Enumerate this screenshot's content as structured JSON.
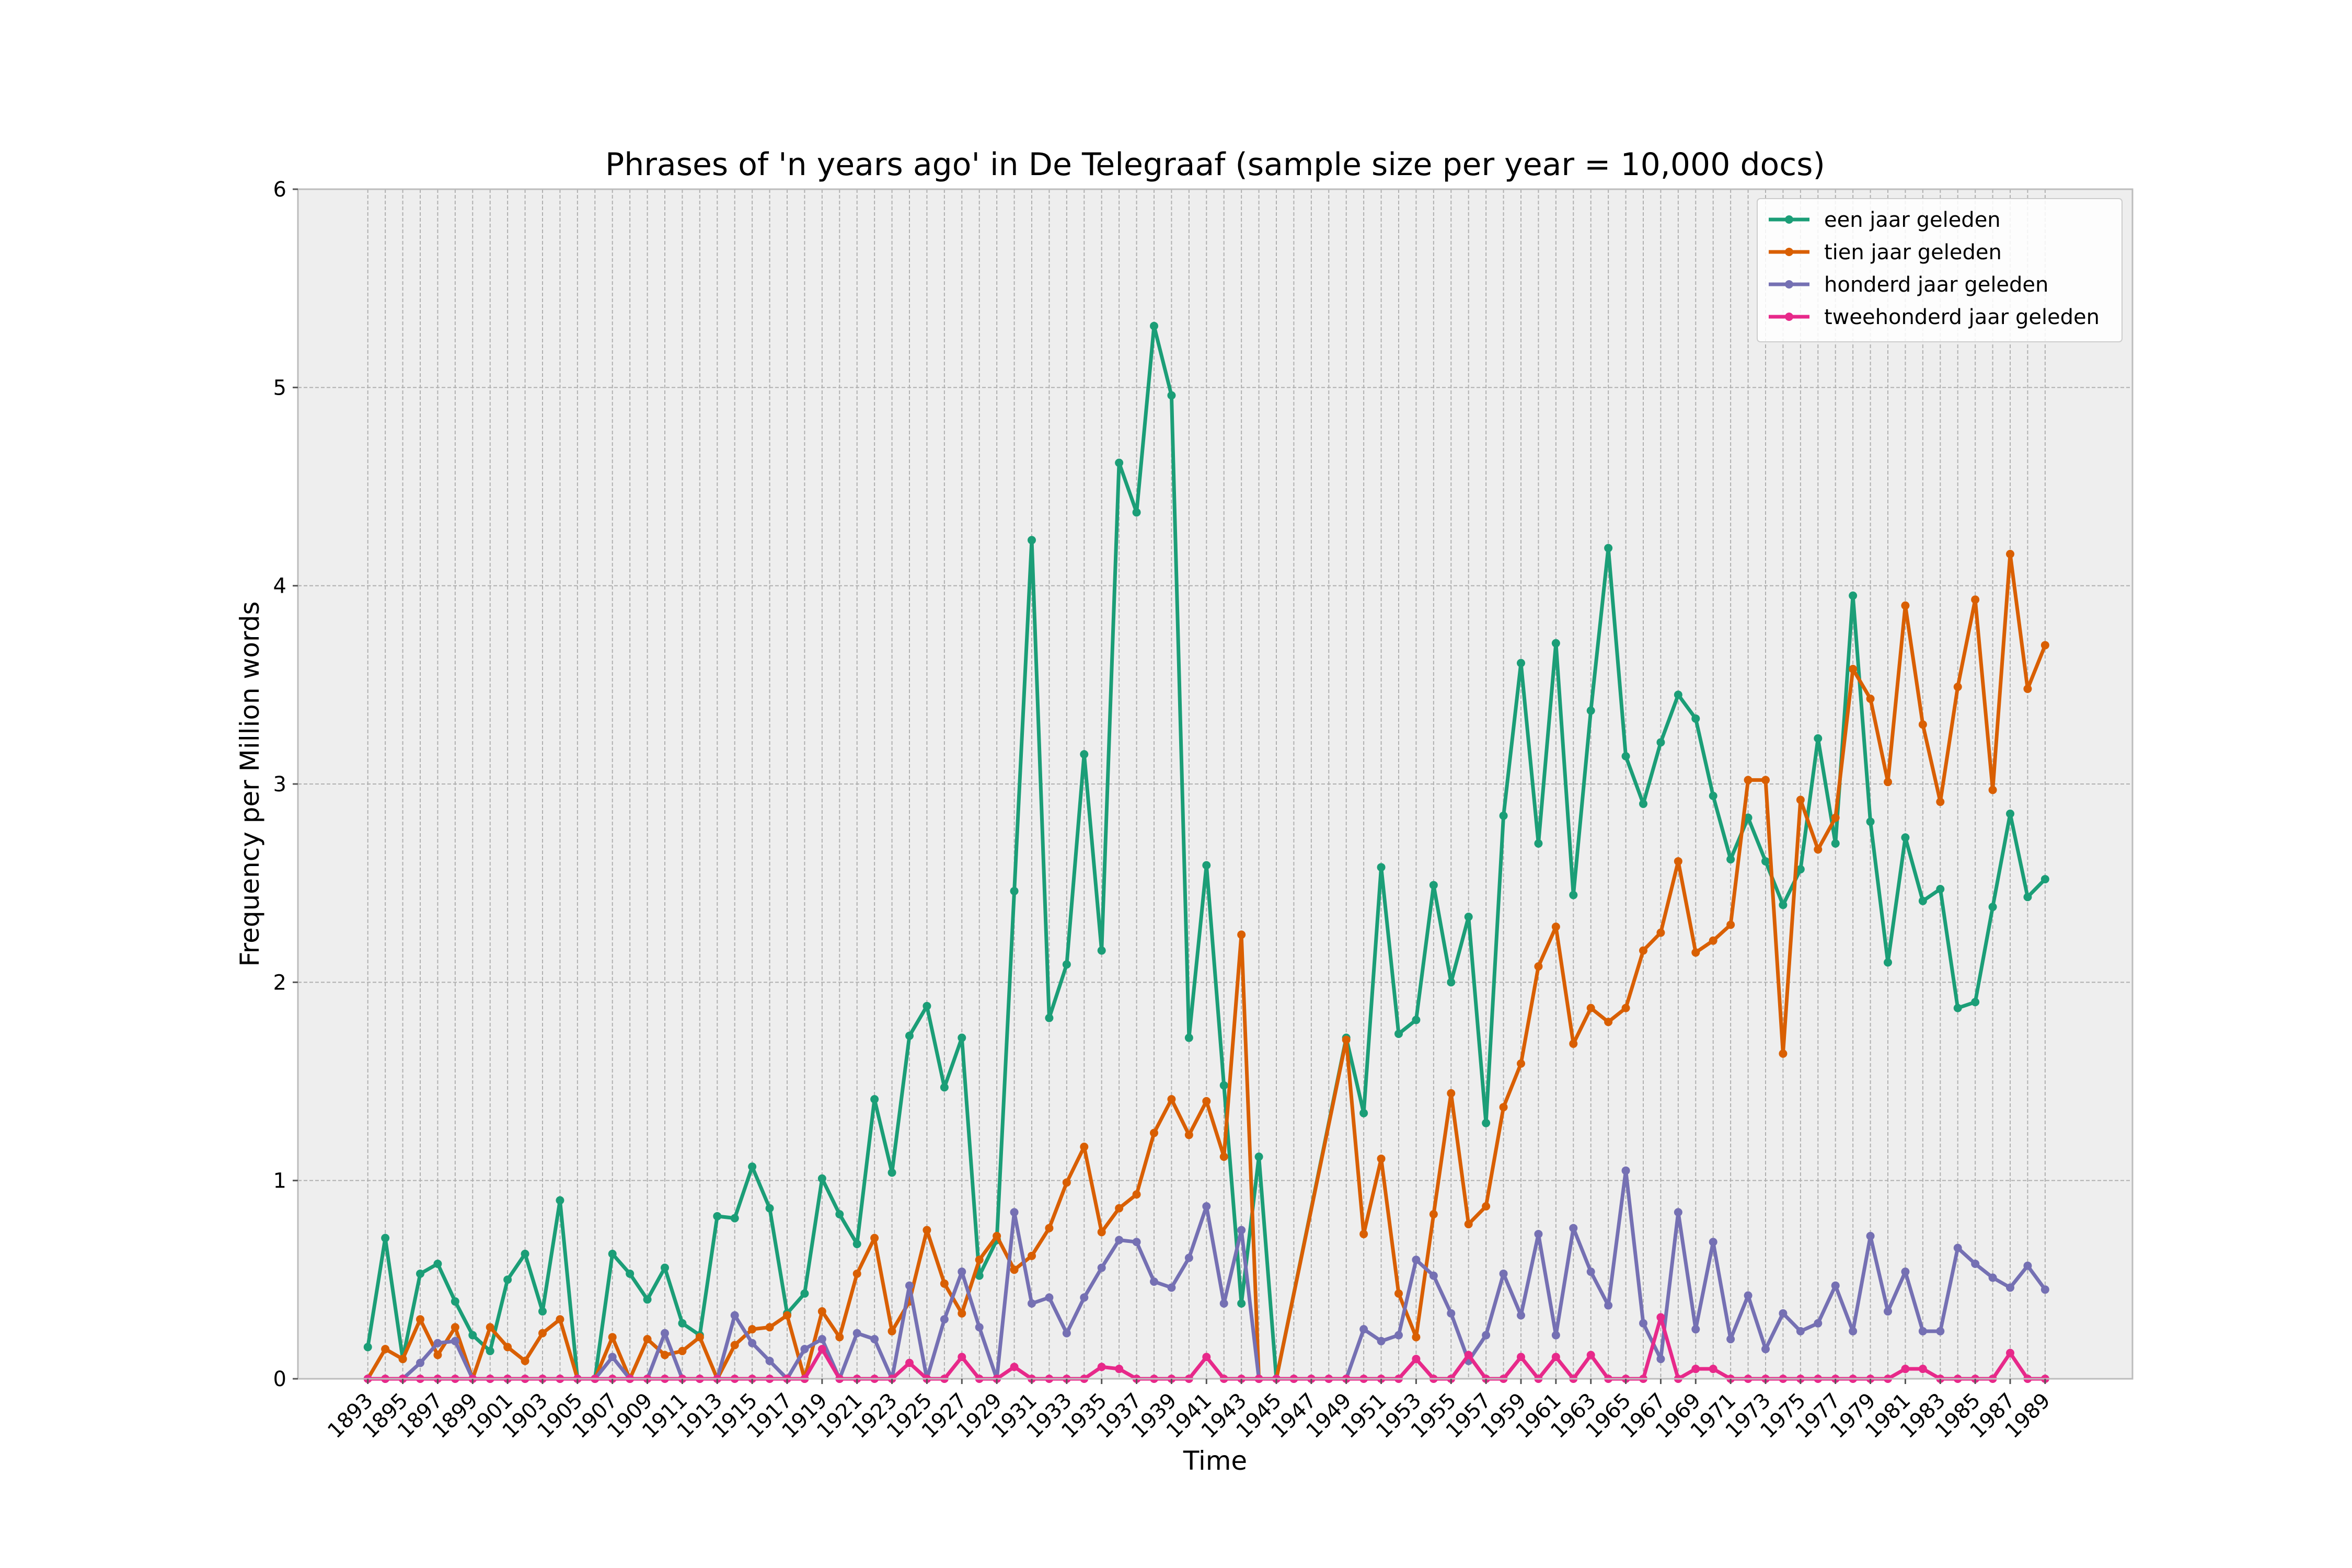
{
  "chart_data": {
    "type": "line",
    "title": "Phrases of 'n years ago' in De Telegraaf (sample size per year = 10,000 docs)",
    "xlabel": "Time",
    "ylabel": "Frequency per Million words",
    "ylim": [
      0,
      6
    ],
    "yticks": [
      "0",
      "1",
      "2",
      "3",
      "4",
      "5",
      "6"
    ],
    "xlim": [
      1893,
      1989
    ],
    "xticks": [
      "1893",
      "1895",
      "1897",
      "1899",
      "1901",
      "1903",
      "1905",
      "1907",
      "1909",
      "1911",
      "1913",
      "1915",
      "1917",
      "1919",
      "1921",
      "1923",
      "1925",
      "1927",
      "1929",
      "1931",
      "1933",
      "1935",
      "1937",
      "1939",
      "1941",
      "1943",
      "1945",
      "1947",
      "1949",
      "1951",
      "1953",
      "1955",
      "1957",
      "1959",
      "1961",
      "1963",
      "1965",
      "1967",
      "1969",
      "1971",
      "1973",
      "1975",
      "1977",
      "1979",
      "1981",
      "1983",
      "1985",
      "1987",
      "1989"
    ],
    "grid": true,
    "legend_position": "top-right",
    "series": [
      {
        "name": "een jaar geleden",
        "color": "#1b9e77",
        "x": [
          1893,
          1894,
          1895,
          1896,
          1897,
          1898,
          1899,
          1900,
          1901,
          1902,
          1903,
          1904,
          1905,
          1906,
          1907,
          1908,
          1909,
          1910,
          1911,
          1912,
          1913,
          1914,
          1915,
          1916,
          1917,
          1918,
          1919,
          1920,
          1921,
          1922,
          1923,
          1924,
          1925,
          1926,
          1927,
          1928,
          1929,
          1930,
          1931,
          1932,
          1933,
          1934,
          1935,
          1936,
          1937,
          1938,
          1939,
          1940,
          1941,
          1942,
          1943,
          1944,
          1945,
          1949,
          1950,
          1951,
          1952,
          1953,
          1954,
          1955,
          1956,
          1957,
          1958,
          1959,
          1960,
          1961,
          1962,
          1963,
          1964,
          1965,
          1966,
          1967,
          1968,
          1969,
          1970,
          1971,
          1972,
          1973,
          1974,
          1975,
          1976,
          1977,
          1978,
          1979,
          1980,
          1981,
          1982,
          1983,
          1984,
          1985,
          1986,
          1987,
          1988,
          1989
        ],
        "y": [
          0.16,
          0.71,
          0.1,
          0.53,
          0.58,
          0.39,
          0.22,
          0.14,
          0.5,
          0.63,
          0.34,
          0.9,
          0.0,
          0.0,
          0.63,
          0.53,
          0.4,
          0.56,
          0.28,
          0.22,
          0.82,
          0.81,
          1.07,
          0.86,
          0.33,
          0.43,
          1.01,
          0.83,
          0.68,
          1.41,
          1.04,
          1.73,
          1.88,
          1.47,
          1.72,
          0.52,
          0.7,
          2.46,
          4.23,
          1.82,
          2.09,
          3.15,
          2.16,
          4.62,
          4.37,
          5.31,
          4.96,
          1.72,
          2.59,
          1.48,
          0.38,
          1.12,
          0.0,
          1.72,
          1.34,
          2.58,
          1.74,
          1.81,
          2.49,
          2.0,
          2.33,
          1.29,
          2.84,
          3.61,
          2.7,
          3.71,
          2.44,
          3.37,
          4.19,
          3.14,
          2.9,
          3.21,
          3.45,
          3.33,
          2.94,
          2.62,
          2.83,
          2.61,
          2.39,
          2.57,
          3.23,
          2.7,
          3.95,
          2.81,
          2.1,
          2.73,
          2.41,
          2.47,
          1.87,
          1.9,
          2.38,
          2.85,
          2.43,
          2.52
        ]
      },
      {
        "name": "tien jaar geleden",
        "color": "#d95f02",
        "x": [
          1893,
          1894,
          1895,
          1896,
          1897,
          1898,
          1899,
          1900,
          1901,
          1902,
          1903,
          1904,
          1905,
          1906,
          1907,
          1908,
          1909,
          1910,
          1911,
          1912,
          1913,
          1914,
          1915,
          1916,
          1917,
          1918,
          1919,
          1920,
          1921,
          1922,
          1923,
          1924,
          1925,
          1926,
          1927,
          1928,
          1929,
          1930,
          1931,
          1932,
          1933,
          1934,
          1935,
          1936,
          1937,
          1938,
          1939,
          1940,
          1941,
          1942,
          1943,
          1944,
          1945,
          1949,
          1950,
          1951,
          1952,
          1953,
          1954,
          1955,
          1956,
          1957,
          1958,
          1959,
          1960,
          1961,
          1962,
          1963,
          1964,
          1965,
          1966,
          1967,
          1968,
          1969,
          1970,
          1971,
          1972,
          1973,
          1974,
          1975,
          1976,
          1977,
          1978,
          1979,
          1980,
          1981,
          1982,
          1983,
          1984,
          1985,
          1986,
          1987,
          1988,
          1989
        ],
        "y": [
          0.0,
          0.15,
          0.1,
          0.3,
          0.12,
          0.26,
          0.0,
          0.26,
          0.16,
          0.09,
          0.23,
          0.3,
          0.0,
          0.0,
          0.21,
          0.0,
          0.2,
          0.12,
          0.14,
          0.21,
          0.0,
          0.17,
          0.25,
          0.26,
          0.32,
          0.0,
          0.34,
          0.21,
          0.53,
          0.71,
          0.24,
          0.39,
          0.75,
          0.48,
          0.33,
          0.6,
          0.72,
          0.55,
          0.62,
          0.76,
          0.99,
          1.17,
          0.74,
          0.86,
          0.93,
          1.24,
          1.41,
          1.23,
          1.4,
          1.12,
          2.24,
          0.0,
          0.0,
          1.71,
          0.73,
          1.11,
          0.43,
          0.21,
          0.83,
          1.44,
          0.78,
          0.87,
          1.37,
          1.59,
          2.08,
          2.28,
          1.69,
          1.87,
          1.8,
          1.87,
          2.16,
          2.25,
          2.61,
          2.15,
          2.21,
          2.29,
          3.02,
          3.02,
          1.64,
          2.92,
          2.67,
          2.83,
          3.58,
          3.43,
          3.01,
          3.9,
          3.3,
          2.91,
          3.49,
          3.93,
          2.97,
          4.16,
          3.48,
          3.7
        ]
      },
      {
        "name": "honderd jaar geleden",
        "color": "#7570b3",
        "x": [
          1893,
          1894,
          1895,
          1896,
          1897,
          1898,
          1899,
          1900,
          1901,
          1902,
          1903,
          1904,
          1905,
          1906,
          1907,
          1908,
          1909,
          1910,
          1911,
          1912,
          1913,
          1914,
          1915,
          1916,
          1917,
          1918,
          1919,
          1920,
          1921,
          1922,
          1923,
          1924,
          1925,
          1926,
          1927,
          1928,
          1929,
          1930,
          1931,
          1932,
          1933,
          1934,
          1935,
          1936,
          1937,
          1938,
          1939,
          1940,
          1941,
          1942,
          1943,
          1944,
          1945,
          1946,
          1947,
          1948,
          1949,
          1950,
          1951,
          1952,
          1953,
          1954,
          1955,
          1956,
          1957,
          1958,
          1959,
          1960,
          1961,
          1962,
          1963,
          1964,
          1965,
          1966,
          1967,
          1968,
          1969,
          1970,
          1971,
          1972,
          1973,
          1974,
          1975,
          1976,
          1977,
          1978,
          1979,
          1980,
          1981,
          1982,
          1983,
          1984,
          1985,
          1986,
          1987,
          1988,
          1989
        ],
        "y": [
          0.0,
          0.0,
          0.0,
          0.08,
          0.18,
          0.19,
          0.0,
          0.0,
          0.0,
          0.0,
          0.0,
          0.0,
          0.0,
          0.0,
          0.11,
          0.0,
          0.0,
          0.23,
          0.0,
          0.0,
          0.0,
          0.32,
          0.18,
          0.09,
          0.0,
          0.15,
          0.2,
          0.0,
          0.23,
          0.2,
          0.0,
          0.47,
          0.0,
          0.3,
          0.54,
          0.26,
          0.0,
          0.84,
          0.38,
          0.41,
          0.23,
          0.41,
          0.56,
          0.7,
          0.69,
          0.49,
          0.46,
          0.61,
          0.87,
          0.38,
          0.75,
          0.0,
          0.0,
          0.0,
          0.0,
          0.0,
          0.0,
          0.25,
          0.19,
          0.22,
          0.6,
          0.52,
          0.33,
          0.09,
          0.22,
          0.53,
          0.32,
          0.73,
          0.22,
          0.76,
          0.54,
          0.37,
          1.05,
          0.28,
          0.1,
          0.84,
          0.25,
          0.69,
          0.2,
          0.42,
          0.15,
          0.33,
          0.24,
          0.28,
          0.47,
          0.24,
          0.72,
          0.34,
          0.54,
          0.24,
          0.24,
          0.66,
          0.58,
          0.51,
          0.46,
          0.57,
          0.45
        ]
      },
      {
        "name": "tweehonderd jaar geleden",
        "color": "#e7298a",
        "x": [
          1893,
          1894,
          1895,
          1896,
          1897,
          1898,
          1899,
          1900,
          1901,
          1902,
          1903,
          1904,
          1905,
          1906,
          1907,
          1908,
          1909,
          1910,
          1911,
          1912,
          1913,
          1914,
          1915,
          1916,
          1917,
          1918,
          1919,
          1920,
          1921,
          1922,
          1923,
          1924,
          1925,
          1926,
          1927,
          1928,
          1929,
          1930,
          1931,
          1932,
          1933,
          1934,
          1935,
          1936,
          1937,
          1938,
          1939,
          1940,
          1941,
          1942,
          1943,
          1944,
          1945,
          1946,
          1947,
          1948,
          1949,
          1950,
          1951,
          1952,
          1953,
          1954,
          1955,
          1956,
          1957,
          1958,
          1959,
          1960,
          1961,
          1962,
          1963,
          1964,
          1965,
          1966,
          1967,
          1968,
          1969,
          1970,
          1971,
          1972,
          1973,
          1974,
          1975,
          1976,
          1977,
          1978,
          1979,
          1980,
          1981,
          1982,
          1983,
          1984,
          1985,
          1986,
          1987,
          1988,
          1989
        ],
        "y": [
          0.0,
          0.0,
          0.0,
          0.0,
          0.0,
          0.0,
          0.0,
          0.0,
          0.0,
          0.0,
          0.0,
          0.0,
          0.0,
          0.0,
          0.0,
          0.0,
          0.0,
          0.0,
          0.0,
          0.0,
          0.0,
          0.0,
          0.0,
          0.0,
          0.0,
          0.0,
          0.15,
          0.0,
          0.0,
          0.0,
          0.0,
          0.08,
          0.0,
          0.0,
          0.11,
          0.0,
          0.0,
          0.06,
          0.0,
          0.0,
          0.0,
          0.0,
          0.06,
          0.05,
          0.0,
          0.0,
          0.0,
          0.0,
          0.11,
          0.0,
          0.0,
          0.0,
          0.0,
          0.0,
          0.0,
          0.0,
          0.0,
          0.0,
          0.0,
          0.0,
          0.1,
          0.0,
          0.0,
          0.12,
          0.0,
          0.0,
          0.11,
          0.0,
          0.11,
          0.0,
          0.12,
          0.0,
          0.0,
          0.0,
          0.31,
          0.0,
          0.05,
          0.05,
          0.0,
          0.0,
          0.0,
          0.0,
          0.0,
          0.0,
          0.0,
          0.0,
          0.0,
          0.0,
          0.05,
          0.05,
          0.0,
          0.0,
          0.0,
          0.0,
          0.13,
          0.0,
          0.0
        ]
      }
    ]
  }
}
